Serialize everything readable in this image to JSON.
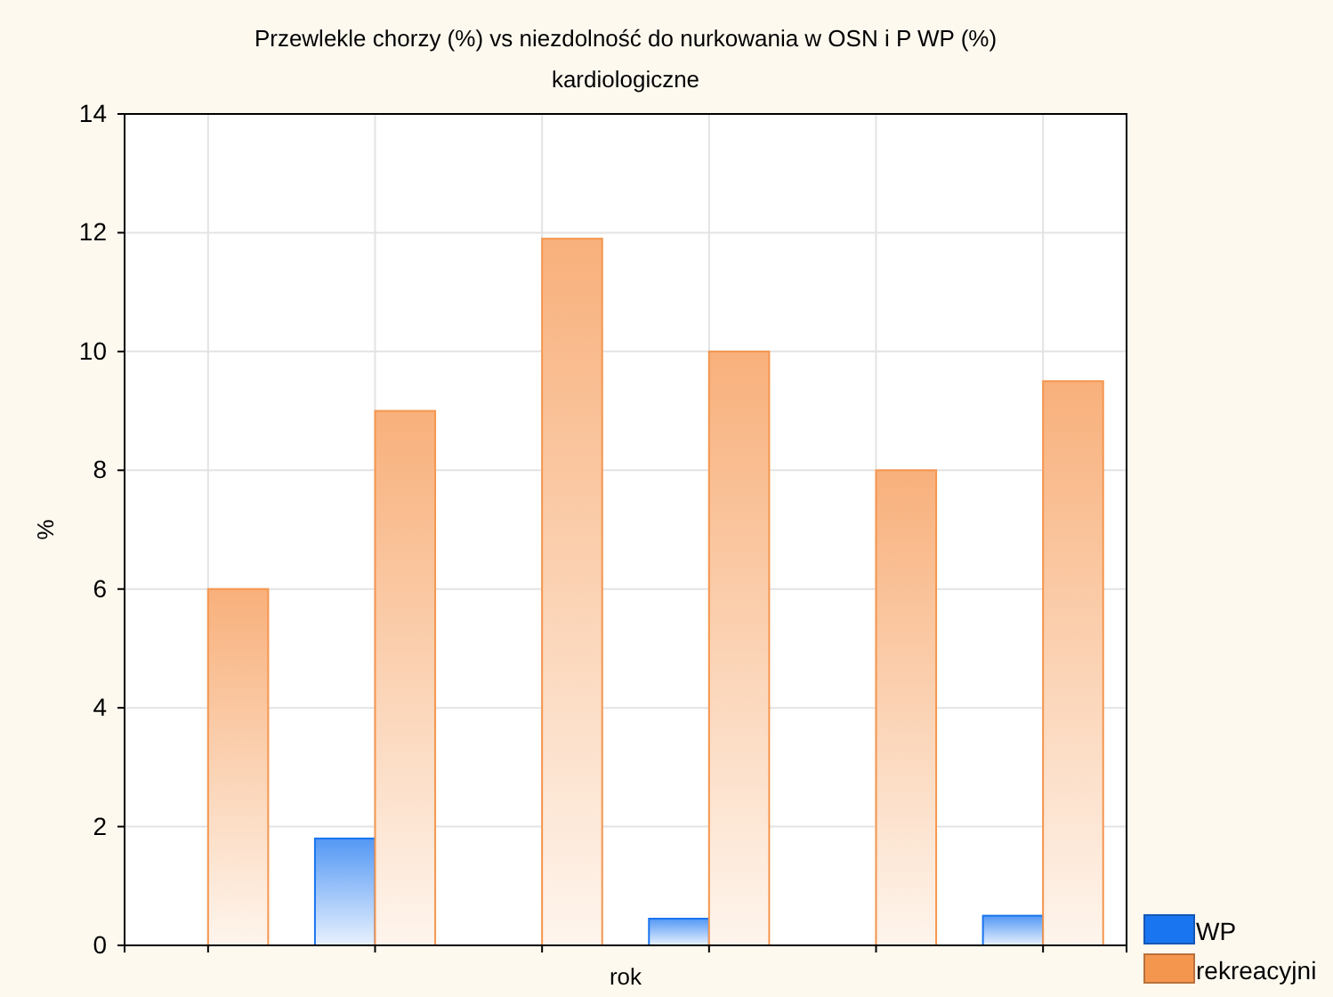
{
  "chart_data": {
    "type": "bar",
    "title": "Przewlekle chorzy (%) vs niezdolność do nurkowania w OSN i P WP (%)",
    "subtitle": "kardiologiczne",
    "xlabel": "rok",
    "ylabel": "%",
    "categories": [
      null,
      null,
      null,
      null,
      null,
      null
    ],
    "series": [
      {
        "name": "WP",
        "color": "#1a75f0",
        "values": [
          0,
          1.8,
          0,
          0.45,
          0,
          0.5
        ]
      },
      {
        "name": "rekreacyjni",
        "color": "#f5964f",
        "values": [
          6,
          9,
          11.9,
          10,
          8,
          9.5
        ]
      }
    ],
    "ylim": [
      0,
      14
    ],
    "yticks": [
      0,
      2,
      4,
      6,
      8,
      10,
      12,
      14
    ],
    "grid": true,
    "legend": "bottom right"
  }
}
